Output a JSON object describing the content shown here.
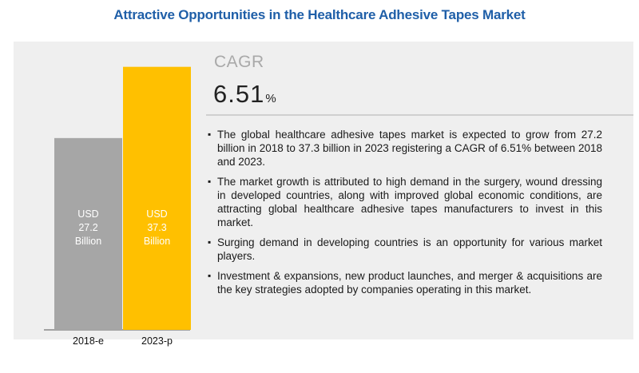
{
  "title": "Attractive Opportunities in the Healthcare Adhesive Tapes Market",
  "cagr": {
    "heading": "CAGR",
    "value": "6.51",
    "unit": "%"
  },
  "bullets": [
    "The global healthcare adhesive tapes market is expected to grow from 27.2 billion in 2018 to 37.3 billion in 2023 registering a CAGR of 6.51% between 2018 and 2023.",
    "The market growth is attributed to high demand in the surgery, wound dressing in developed countries, along with improved global economic conditions, are attracting global healthcare adhesive tapes manufacturers to invest in this market.",
    "Surging demand in developing countries is an opportunity for various market players.",
    "Investment & expansions, new product launches, and merger & acquisitions are the key strategies adopted by companies operating in this market."
  ],
  "chart_data": {
    "type": "bar",
    "categories": [
      "2018-e",
      "2023-p"
    ],
    "values": [
      27.2,
      37.3
    ],
    "bar_text": [
      [
        "USD",
        "27.2",
        "Billion"
      ],
      [
        "USD",
        "37.3",
        "Billion"
      ]
    ],
    "colors": [
      "#a6a6a6",
      "#ffc000"
    ],
    "ylim": [
      0,
      41
    ]
  }
}
